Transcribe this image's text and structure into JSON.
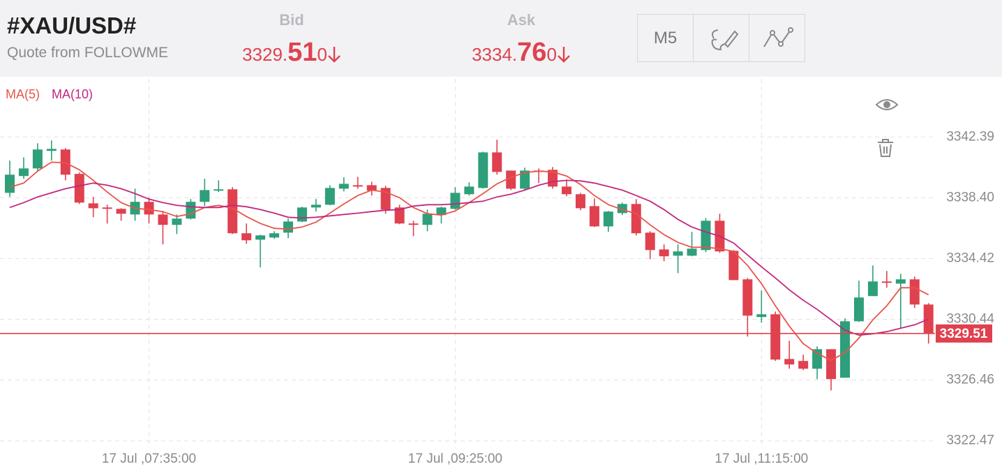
{
  "header": {
    "symbol": "#XAU/USD#",
    "source": "Quote from FOLLOWME",
    "bid": {
      "label": "Bid",
      "price_head": "3329.",
      "price_big": "51",
      "price_tail": "0"
    },
    "ask": {
      "label": "Ask",
      "price_head": "3334.",
      "price_big": "76",
      "price_tail": "0"
    }
  },
  "toolbar": {
    "interval": "M5"
  },
  "chart_data": {
    "type": "candlestick",
    "categories": [
      null,
      null,
      null,
      null,
      null,
      null,
      null,
      null,
      null,
      null,
      "17 Jul ,07:35:00",
      null,
      null,
      null,
      null,
      null,
      null,
      null,
      null,
      null,
      null,
      null,
      null,
      null,
      null,
      null,
      null,
      null,
      null,
      null,
      null,
      null,
      "17 Jul ,09:25:00",
      null,
      null,
      null,
      null,
      null,
      null,
      null,
      null,
      null,
      null,
      null,
      null,
      null,
      null,
      null,
      null,
      null,
      null,
      null,
      null,
      null,
      "17 Jul ,11:15:00",
      null,
      null,
      null,
      null,
      null,
      null,
      null,
      null,
      null,
      null,
      null,
      null
    ],
    "open": [
      3338.73,
      3339.83,
      3340.33,
      3341.48,
      3341.57,
      3339.97,
      3338.04,
      3337.77,
      3337.68,
      3337.31,
      3338.14,
      3337.31,
      3336.63,
      3337.04,
      3338.14,
      3338.87,
      3338.96,
      3336.08,
      3335.66,
      3335.8,
      3336.12,
      3336.85,
      3337.77,
      3337.95,
      3339.0,
      3339.23,
      3339.23,
      3339.05,
      3337.77,
      3336.72,
      3336.63,
      3337.27,
      3337.68,
      3338.64,
      3339.05,
      3341.38,
      3340.19,
      3339.0,
      3340.19,
      3340.24,
      3339.14,
      3338.64,
      3337.86,
      3336.53,
      3337.4,
      3338.0,
      3336.12,
      3335.02,
      3334.61,
      3334.61,
      3334.98,
      3336.9,
      3334.93,
      3333.06,
      3330.59,
      3330.77,
      3327.84,
      3327.71,
      3327.2,
      3328.48,
      3326.61,
      3330.31,
      3331.96,
      3332.92,
      3332.78,
      3333.06,
      3331.41
    ],
    "high": [
      3340.84,
      3341.06,
      3341.98,
      3342.16,
      3341.66,
      3340.06,
      3338.46,
      3337.95,
      3337.72,
      3339.0,
      3338.41,
      3337.54,
      3337.31,
      3338.32,
      3339.65,
      3339.55,
      3339.1,
      3336.72,
      3335.98,
      3336.21,
      3337.04,
      3337.82,
      3338.32,
      3339.23,
      3339.74,
      3339.78,
      3339.46,
      3339.19,
      3337.95,
      3336.9,
      3337.63,
      3337.82,
      3339.1,
      3339.42,
      3341.43,
      3342.21,
      3340.19,
      3340.38,
      3340.33,
      3340.42,
      3339.6,
      3338.73,
      3338.36,
      3337.54,
      3338.09,
      3338.32,
      3336.21,
      3335.35,
      3335.35,
      3336.17,
      3337.08,
      3337.36,
      3334.98,
      3333.15,
      3332.33,
      3330.95,
      3329.03,
      3328.12,
      3328.67,
      3328.48,
      3330.5,
      3332.97,
      3333.97,
      3333.61,
      3333.42,
      3333.24,
      3331.5
    ],
    "low": [
      3338.46,
      3339.65,
      3340.15,
      3340.84,
      3339.55,
      3338.0,
      3337.13,
      3336.72,
      3336.9,
      3336.9,
      3336.72,
      3335.35,
      3336.03,
      3336.99,
      3337.86,
      3338.78,
      3336.03,
      3335.39,
      3333.84,
      3335.71,
      3335.76,
      3336.81,
      3337.5,
      3337.91,
      3338.82,
      3339.0,
      3338.55,
      3337.36,
      3336.67,
      3335.89,
      3336.21,
      3336.72,
      3337.63,
      3338.55,
      3339.0,
      3339.92,
      3338.91,
      3338.91,
      3339.37,
      3339.0,
      3338.5,
      3337.59,
      3336.49,
      3336.17,
      3337.27,
      3335.94,
      3334.38,
      3334.25,
      3333.47,
      3334.57,
      3334.84,
      3334.8,
      3333.01,
      3329.31,
      3330.22,
      3327.71,
      3327.2,
      3327.11,
      3326.52,
      3325.78,
      3326.61,
      3330.27,
      3331.96,
      3332.51,
      3329.86,
      3331.18,
      3328.85
    ],
    "close": [
      3339.92,
      3340.33,
      3341.57,
      3341.61,
      3339.92,
      3338.09,
      3337.72,
      3337.68,
      3337.36,
      3338.14,
      3337.31,
      3336.63,
      3337.04,
      3338.14,
      3338.91,
      3338.96,
      3336.08,
      3335.62,
      3335.94,
      3336.08,
      3336.85,
      3337.77,
      3337.95,
      3339.05,
      3339.32,
      3339.14,
      3338.87,
      3337.63,
      3336.72,
      3336.63,
      3337.36,
      3337.77,
      3338.73,
      3339.14,
      3341.38,
      3340.1,
      3339.0,
      3340.19,
      3340.1,
      3339.14,
      3338.64,
      3337.72,
      3336.53,
      3337.5,
      3338.0,
      3336.08,
      3334.98,
      3334.57,
      3334.89,
      3335.07,
      3336.9,
      3334.89,
      3333.01,
      3330.68,
      3330.77,
      3327.8,
      3327.48,
      3327.2,
      3328.48,
      3326.52,
      3330.31,
      3331.87,
      3332.92,
      3332.83,
      3333.06,
      3331.41,
      3329.51
    ],
    "up_color": "#2e9f7a",
    "down_color": "#e0414f",
    "series": [
      {
        "name": "MA(5)",
        "color": "#e8554a",
        "values": [
          3339.1,
          3339.37,
          3340.15,
          3340.74,
          3340.7,
          3340.24,
          3339.55,
          3338.78,
          3338.09,
          3337.72,
          3337.63,
          3337.5,
          3337.18,
          3337.36,
          3337.77,
          3337.91,
          3337.72,
          3337.18,
          3336.72,
          3336.4,
          3336.35,
          3336.49,
          3336.81,
          3337.4,
          3338.0,
          3338.55,
          3338.91,
          3338.78,
          3338.41,
          3337.77,
          3337.36,
          3337.27,
          3337.54,
          3338.09,
          3338.68,
          3339.32,
          3339.74,
          3340.06,
          3340.15,
          3340.1,
          3339.83,
          3339.28,
          3338.55,
          3337.95,
          3337.63,
          3337.36,
          3336.63,
          3335.99,
          3335.48,
          3335.16,
          3335.16,
          3335.07,
          3334.89,
          3333.97,
          3332.78,
          3331.32,
          3329.99,
          3328.85,
          3328.21,
          3327.75,
          3328.25,
          3329.21,
          3330.41,
          3331.32,
          3332.51,
          3332.51,
          3332.05
        ]
      },
      {
        "name": "MA(10)",
        "color": "#c2277e",
        "values": [
          3337.77,
          3338.09,
          3338.46,
          3338.73,
          3339.0,
          3339.19,
          3339.37,
          3339.23,
          3339.0,
          3338.68,
          3338.32,
          3338.09,
          3337.91,
          3337.82,
          3337.77,
          3337.77,
          3337.91,
          3337.82,
          3337.63,
          3337.4,
          3337.13,
          3337.08,
          3337.13,
          3337.22,
          3337.31,
          3337.4,
          3337.5,
          3337.59,
          3337.63,
          3337.86,
          3337.95,
          3337.95,
          3338.0,
          3338.09,
          3338.18,
          3338.46,
          3338.64,
          3338.91,
          3339.23,
          3339.46,
          3339.55,
          3339.51,
          3339.37,
          3339.14,
          3338.91,
          3338.55,
          3338.18,
          3337.63,
          3336.99,
          3336.49,
          3336.17,
          3335.89,
          3335.44,
          3334.66,
          3333.88,
          3333.15,
          3332.37,
          3331.69,
          3331.09,
          3330.41,
          3329.72,
          3329.4,
          3329.49,
          3329.63,
          3329.86,
          3330.08,
          3330.45
        ]
      }
    ],
    "last_price": 3329.51,
    "ylim": [
      3322.0,
      3346.2
    ],
    "yticks": [
      3322.47,
      3326.46,
      3330.44,
      3334.42,
      {
        "value": 3338.4,
        "label": "3338.40"
      },
      3342.39
    ],
    "grid": true
  }
}
